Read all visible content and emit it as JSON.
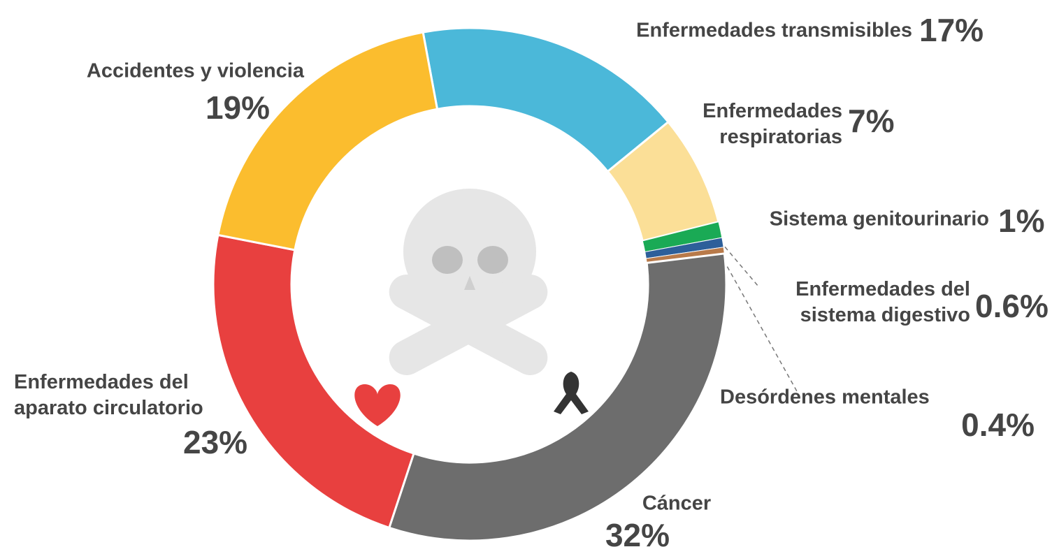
{
  "chart_data": {
    "type": "donut",
    "categories": [
      "Enfermedades transmisibles",
      "Enfermedades\nrespiratorias",
      "Sistema genitourinario",
      "Enfermedades del\nsistema digestivo",
      "Desórdenes mentales",
      "Cáncer",
      "Enfermedades del\naparato circulatorio",
      "Accidentes y violencia"
    ],
    "values": [
      17,
      7,
      1,
      0.6,
      0.4,
      32,
      23,
      19
    ],
    "value_labels": [
      "17%",
      "7%",
      "1%",
      "0.6%",
      "0.4%",
      "32%",
      "23%",
      "19%"
    ],
    "colors": [
      "#4bb8d9",
      "#fbdf97",
      "#1aaa55",
      "#2d5f9a",
      "#b87a4a",
      "#6d6d6d",
      "#e8403f",
      "#fbbd2e"
    ]
  }
}
